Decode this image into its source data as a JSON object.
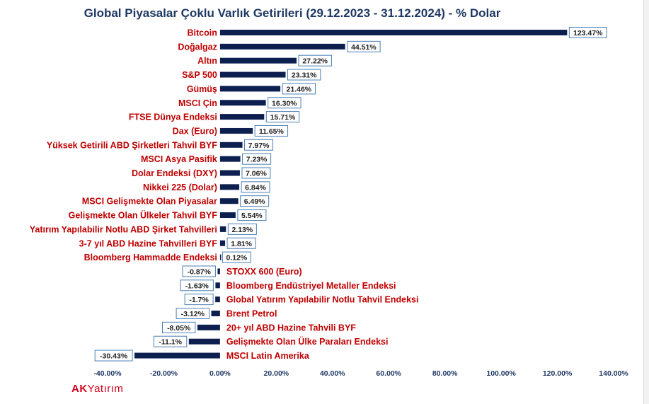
{
  "title": "Global Piyasalar Çoklu Varlık Getirileri (29.12.2023 - 31.12.2024) - % Dolar",
  "logo": {
    "part1": "AK",
    "part2": "Yatırım"
  },
  "colors": {
    "bar": "#0d1f4f",
    "label": "#c00000",
    "title": "#1f3864",
    "label_border": "#4a7fb5"
  },
  "chart_data": {
    "type": "bar",
    "orientation": "horizontal",
    "title": "Global Piyasalar Çoklu Varlık Getirileri (29.12.2023 - 31.12.2024) - % Dolar",
    "xlabel": "",
    "ylabel": "",
    "xlim": [
      -40,
      140
    ],
    "grid": false,
    "ticks": [
      -40,
      -20,
      0,
      20,
      40,
      60,
      80,
      100,
      120,
      140
    ],
    "tick_labels": [
      "-40.00%",
      "-20.00%",
      "0.00%",
      "20.00%",
      "40.00%",
      "60.00%",
      "80.00%",
      "100.00%",
      "120.00%",
      "140.00%"
    ],
    "categories": [
      "Bitcoin",
      "Doğalgaz",
      "Altın",
      "S&P 500",
      "Gümüş",
      "MSCI Çin",
      "FTSE Dünya Endeksi",
      "Dax (Euro)",
      "Yüksek Getirili ABD Şirketleri Tahvil BYF",
      "MSCI Asya Pasifik",
      "Dolar Endeksi (DXY)",
      "Nikkei 225 (Dolar)",
      "MSCI Gelişmekte Olan Piyasalar",
      "Gelişmekte Olan Ülkeler Tahvil BYF",
      "Yatırım Yapılabilir Notlu  ABD Şirket Tahvilleri",
      "3-7 yıl ABD Hazine Tahvilleri BYF",
      "Bloomberg Hammadde Endeksi",
      "STOXX 600 (Euro)",
      "Bloomberg Endüstriyel Metaller Endeksi",
      "Global Yatırım Yapılabilir Notlu Tahvil Endeksi",
      "Brent Petrol",
      "20+ yıl ABD Hazine Tahvili BYF",
      "Gelişmekte Olan Ülke Paraları Endeksi",
      "MSCI Latin Amerika"
    ],
    "values": [
      123.47,
      44.51,
      27.22,
      23.31,
      21.46,
      16.3,
      15.71,
      11.65,
      7.97,
      7.23,
      7.06,
      6.84,
      6.49,
      5.54,
      2.13,
      1.81,
      0.12,
      -0.87,
      -1.63,
      -1.7,
      -3.12,
      -8.05,
      -11.1,
      -30.43
    ],
    "value_labels": [
      "123.47%",
      "44.51%",
      "27.22%",
      "23.31%",
      "21.46%",
      "16.30%",
      "15.71%",
      "11.65%",
      "7.97%",
      "7.23%",
      "7.06%",
      "6.84%",
      "6.49%",
      "5.54%",
      "2.13%",
      "1.81%",
      "0.12%",
      "-0.87%",
      "-1.63%",
      "-1.7%",
      "-3.12%",
      "-8.05%",
      "-11.1%",
      "-30.43%"
    ]
  }
}
